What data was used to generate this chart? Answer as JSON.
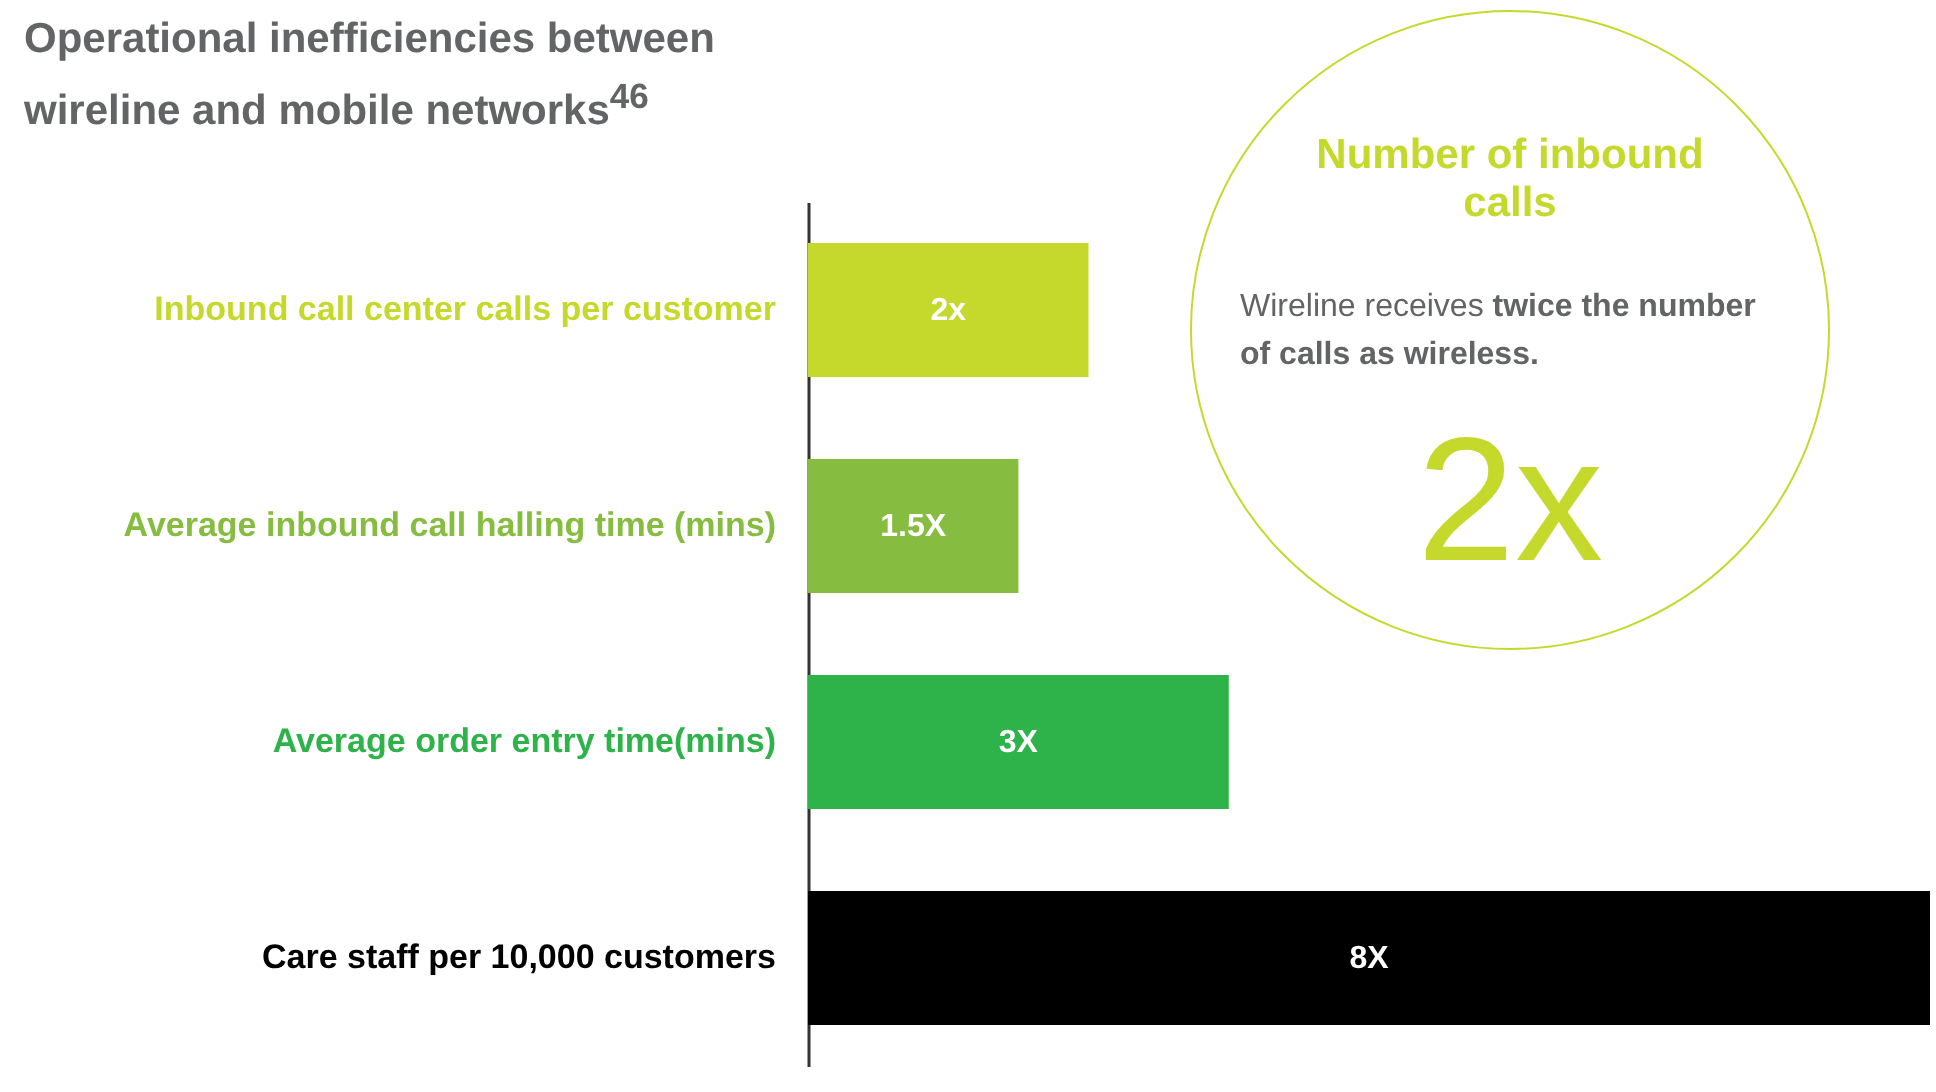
{
  "chart_data": {
    "type": "bar",
    "orientation": "horizontal",
    "title": "Operational inefficiencies between wireline and mobile networks$^{46}$",
    "categories": [
      "Inbound call center calls per customer",
      "Average inbound call halling time (mins)",
      "Average order entry time(mins)",
      "Care staff per 10,000 customers"
    ],
    "values": [
      2,
      1.5,
      3,
      8
    ],
    "value_labels": [
      "2x",
      "1.5X",
      "3X",
      "8X"
    ],
    "colors": [
      "#c5d92d",
      "#86bc3f",
      "#2eb24a",
      "#000000"
    ],
    "annotations": [
      "Number of inbound calls",
      "Wireline receives",
      "twice the number of calls as wireless.",
      "2x"
    ]
  }
}
